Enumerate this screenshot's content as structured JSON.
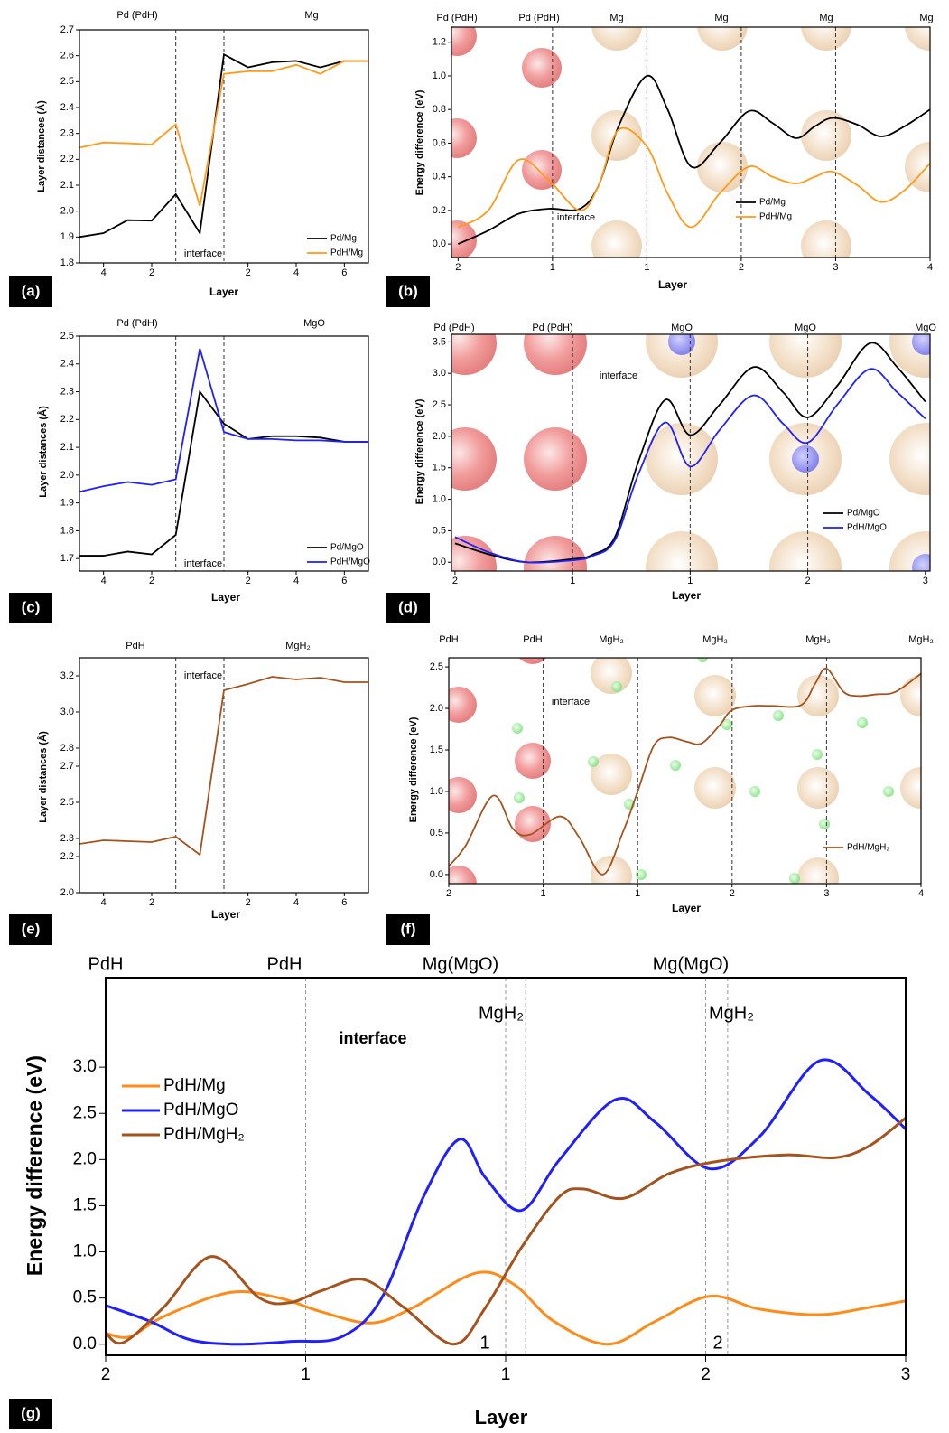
{
  "chart_data": [
    {
      "type": "line",
      "panel_label": "(a)",
      "top_labels": [
        "Pd (PdH)",
        "Mg"
      ],
      "annotations": [
        "interface"
      ],
      "x_label": "Layer",
      "y_label": "Layer distances (Å)",
      "categories": [
        null,
        "4",
        null,
        "2",
        null,
        null,
        null,
        "2",
        null,
        "4",
        null,
        "6",
        null
      ],
      "series": [
        {
          "name": "Pd/Mg",
          "color": "#000000",
          "values": [
            1.9,
            1.915,
            1.965,
            1.963,
            2.065,
            1.915,
            2.605,
            2.555,
            2.575,
            2.58,
            2.555,
            2.58,
            2.58
          ]
        },
        {
          "name": "PdH/Mg",
          "color": "#ff9a1a",
          "values": [
            2.245,
            2.265,
            2.262,
            2.257,
            2.335,
            2.02,
            2.53,
            2.54,
            2.54,
            2.565,
            2.53,
            2.58,
            2.58
          ]
        }
      ],
      "ylim": [
        1.8,
        2.7
      ],
      "yticks": [
        1.8,
        1.9,
        {
          "value": 2,
          "label": "2.0"
        },
        2.1,
        2.2,
        2.3,
        2.4,
        2.5,
        2.6,
        2.7
      ],
      "legend": "lower right",
      "smooth": false
    },
    {
      "type": "line",
      "panel_label": "(b)",
      "top_labels": [
        "Pd (PdH)",
        "Pd (PdH)",
        "Mg",
        "Mg",
        "Mg",
        "Mg"
      ],
      "annotations": [
        "interface"
      ],
      "x_label": "Layer",
      "y_label": "Energy difference (eV)",
      "categories": [
        "2",
        "1",
        "1",
        "2",
        "3",
        "4"
      ],
      "xlim": [
        -0.07,
        5
      ],
      "series": [
        {
          "name": "Pd/Mg",
          "color": "#000000",
          "x": [
            0,
            0.32,
            0.64,
            0.96,
            1.29,
            1.49,
            1.7,
            2,
            2.22,
            2.47,
            2.77,
            3.08,
            3.33,
            3.58,
            3.78,
            3.97,
            4.23,
            4.48,
            4.73,
            5
          ],
          "values": [
            0.0,
            0.08,
            0.18,
            0.21,
            0.21,
            0.35,
            0.7,
            1.0,
            0.8,
            0.46,
            0.6,
            0.79,
            0.72,
            0.63,
            0.7,
            0.75,
            0.71,
            0.64,
            0.7,
            0.8
          ]
        },
        {
          "name": "PdH/Mg",
          "color": "#ff9a1a",
          "x": [
            0,
            0.32,
            0.64,
            0.96,
            1.29,
            1.49,
            1.7,
            2,
            2.22,
            2.47,
            2.77,
            3.08,
            3.33,
            3.58,
            3.78,
            3.97,
            4.23,
            4.48,
            4.73,
            5
          ],
          "values": [
            0.1,
            0.2,
            0.5,
            0.38,
            0.2,
            0.35,
            0.68,
            0.58,
            0.3,
            0.1,
            0.3,
            0.46,
            0.4,
            0.36,
            0.4,
            0.43,
            0.35,
            0.25,
            0.32,
            0.48
          ]
        }
      ],
      "ylim": [
        -0.08,
        1.29
      ],
      "yticks": [
        {
          "value": 0,
          "label": "0.0"
        },
        0.2,
        0.4,
        0.6,
        0.8,
        {
          "value": 1,
          "label": "1.0"
        },
        1.2
      ],
      "legend": "lower right",
      "smooth": true
    },
    {
      "type": "line",
      "panel_label": "(c)",
      "top_labels": [
        "Pd (PdH)",
        "MgO"
      ],
      "annotations": [
        "interface"
      ],
      "x_label": "Layer",
      "y_label": "Layer distances (Å)",
      "categories": [
        null,
        "4",
        null,
        "2",
        null,
        null,
        null,
        "2",
        null,
        "4",
        null,
        "6",
        null
      ],
      "series": [
        {
          "name": "Pd/MgO",
          "color": "#000000",
          "values": [
            1.71,
            1.71,
            1.725,
            1.715,
            1.785,
            2.3,
            2.185,
            2.13,
            2.14,
            2.14,
            2.135,
            2.12,
            2.12
          ]
        },
        {
          "name": "PdH/MgO",
          "color": "#1f1fff",
          "values": [
            1.94,
            1.96,
            1.975,
            1.965,
            1.985,
            2.455,
            2.155,
            2.13,
            2.13,
            2.125,
            2.125,
            2.12,
            2.12
          ]
        }
      ],
      "ylim": [
        1.655,
        2.5
      ],
      "yticks": [
        1.7,
        1.8,
        1.9,
        {
          "value": 2,
          "label": "2.0"
        },
        2.1,
        2.2,
        2.3,
        2.4,
        2.5
      ],
      "legend": "lower right",
      "smooth": false
    },
    {
      "type": "line",
      "panel_label": "(d)",
      "top_labels": [
        "Pd (PdH)",
        "Pd (PdH)",
        "MgO",
        "MgO",
        "MgO"
      ],
      "annotations": [
        "interface"
      ],
      "x_label": "Layer",
      "y_label": "Energy difference (eV)",
      "categories": [
        "2",
        "1",
        "1",
        "2",
        "3"
      ],
      "xlim": [
        -0.03,
        4.04
      ],
      "series": [
        {
          "name": "Pd/MgO",
          "color": "#000000",
          "x": [
            0,
            0.3,
            0.61,
            1,
            1.17,
            1.36,
            1.56,
            1.79,
            2,
            2.25,
            2.54,
            2.79,
            3,
            3.25,
            3.53,
            3.76,
            4
          ],
          "values": [
            0.3,
            0.12,
            0.0,
            0.05,
            0.12,
            0.4,
            1.6,
            2.58,
            2.02,
            2.5,
            3.1,
            2.7,
            2.3,
            2.8,
            3.48,
            3.1,
            2.55
          ]
        },
        {
          "name": "PdH/MgO",
          "color": "#1f1fff",
          "x": [
            0,
            0.3,
            0.61,
            1,
            1.17,
            1.36,
            1.56,
            1.79,
            2,
            2.25,
            2.54,
            2.79,
            3,
            3.25,
            3.53,
            3.76,
            4
          ],
          "values": [
            0.4,
            0.15,
            0.0,
            0.03,
            0.1,
            0.35,
            1.4,
            2.22,
            1.52,
            2.1,
            2.65,
            2.2,
            1.9,
            2.5,
            3.07,
            2.7,
            2.28
          ]
        }
      ],
      "ylim": [
        -0.14,
        3.62
      ],
      "yticks": [
        {
          "value": 0,
          "label": "0.0"
        },
        0.5,
        {
          "value": 1,
          "label": "1.0"
        },
        1.5,
        {
          "value": 2,
          "label": "2.0"
        },
        2.5,
        {
          "value": 3,
          "label": "3.0"
        },
        3.5
      ],
      "legend": "lower right",
      "smooth": true
    },
    {
      "type": "line",
      "panel_label": "(e)",
      "top_labels": [
        "PdH",
        "MgH₂"
      ],
      "annotations": [
        "interface"
      ],
      "x_label": "Layer",
      "y_label": "Layer distances (Å)",
      "categories": [
        null,
        "4",
        null,
        "2",
        null,
        null,
        null,
        "2",
        null,
        "4",
        null,
        "6",
        null
      ],
      "series": [
        {
          "name": "PdH/MgH₂",
          "color": "#a5531e",
          "values": [
            2.27,
            2.29,
            2.285,
            2.28,
            2.31,
            2.21,
            3.12,
            3.155,
            3.195,
            3.18,
            3.19,
            3.165,
            3.165
          ]
        }
      ],
      "ylim": [
        2.0,
        3.3
      ],
      "yticks": [
        {
          "value": 2,
          "label": "2.0"
        },
        2.2,
        2.3,
        2.5,
        2.7,
        2.8,
        {
          "value": 3,
          "label": "3.0"
        },
        3.2
      ],
      "smooth": false
    },
    {
      "type": "line",
      "panel_label": "(f)",
      "top_labels": [
        "PdH",
        "PdH",
        "MgH₂",
        "MgH₂",
        "MgH₂",
        "MgH₂"
      ],
      "annotations": [
        "interface"
      ],
      "x_label": "Layer",
      "y_label": "Energy difference (eV)",
      "categories": [
        "2",
        "1",
        "1",
        "2",
        "3",
        "4"
      ],
      "xlim": [
        0,
        5
      ],
      "series": [
        {
          "name": "PdH/MgH₂",
          "color": "#a5531e",
          "x": [
            0,
            0.18,
            0.47,
            0.68,
            0.86,
            1.18,
            1.38,
            1.63,
            1.84,
            2,
            2.17,
            2.33,
            2.52,
            2.68,
            2.87,
            3,
            3.23,
            3.42,
            3.73,
            3.88,
            4,
            4.18,
            4.33,
            4.53,
            4.73,
            5
          ],
          "values": [
            0.1,
            0.35,
            0.95,
            0.55,
            0.48,
            0.7,
            0.45,
            0.0,
            0.5,
            1.0,
            1.55,
            1.65,
            1.6,
            1.58,
            1.8,
            1.98,
            2.03,
            2.03,
            2.04,
            2.3,
            2.48,
            2.2,
            2.15,
            2.17,
            2.2,
            2.42
          ]
        }
      ],
      "ylim": [
        -0.11,
        2.61
      ],
      "yticks": [
        {
          "value": 0,
          "label": "0.0"
        },
        0.5,
        {
          "value": 1,
          "label": "1.0"
        },
        1.5,
        {
          "value": 2,
          "label": "2.0"
        },
        2.5
      ],
      "legend": "lower right",
      "smooth": true
    },
    {
      "type": "line",
      "panel_label": "(g)",
      "top_labels": [
        "PdH",
        "PdH",
        "Mg(MgO)",
        "Mg(MgO)",
        "MgH₂",
        "MgH₂"
      ],
      "annotations": [
        "interface",
        "1",
        "2"
      ],
      "x_label": "Layer",
      "y_label": "Energy difference (eV)",
      "categories": [
        "2",
        "1",
        "1",
        "2",
        "3"
      ],
      "xlim": [
        0,
        4
      ],
      "series": [
        {
          "name": "PdH/Mg",
          "color": "#ff8c1a",
          "x": [
            0,
            0.12,
            0.29,
            0.62,
            0.87,
            1.08,
            1.33,
            1.54,
            1.85,
            2.04,
            2.24,
            2.51,
            2.75,
            3.02,
            3.27,
            3.57,
            3.82,
            4
          ],
          "values": [
            0.12,
            0.08,
            0.3,
            0.56,
            0.5,
            0.35,
            0.23,
            0.4,
            0.77,
            0.65,
            0.25,
            0.0,
            0.25,
            0.52,
            0.38,
            0.32,
            0.4,
            0.47
          ]
        },
        {
          "name": "PdH/MgO",
          "color": "#1f1fff",
          "x": [
            0,
            0.22,
            0.42,
            0.65,
            0.93,
            1.18,
            1.38,
            1.59,
            1.77,
            1.9,
            2.08,
            2.27,
            2.55,
            2.75,
            3.02,
            3.27,
            3.57,
            3.82,
            4
          ],
          "values": [
            0.42,
            0.25,
            0.05,
            0.0,
            0.03,
            0.08,
            0.5,
            1.6,
            2.22,
            1.8,
            1.45,
            2.0,
            2.65,
            2.4,
            1.9,
            2.25,
            3.07,
            2.7,
            2.33
          ]
        },
        {
          "name": "PdH/MgH₂",
          "color": "#a5531e",
          "x": [
            0,
            0.09,
            0.29,
            0.53,
            0.77,
            0.92,
            1.08,
            1.29,
            1.49,
            1.74,
            1.9,
            2.08,
            2.27,
            2.39,
            2.59,
            2.82,
            3.06,
            3.4,
            3.65,
            3.82,
            4
          ],
          "values": [
            0.12,
            0.02,
            0.4,
            0.95,
            0.5,
            0.45,
            0.58,
            0.7,
            0.4,
            0.0,
            0.4,
            1.05,
            1.6,
            1.68,
            1.58,
            1.85,
            1.98,
            2.05,
            2.02,
            2.15,
            2.45
          ]
        }
      ],
      "ylim": [
        -0.12,
        3.97
      ],
      "yticks": [
        {
          "value": 0,
          "label": "0.0"
        },
        0.5,
        {
          "value": 1,
          "label": "1.0"
        },
        1.5,
        {
          "value": 2,
          "label": "2.0"
        },
        2.5,
        {
          "value": 3,
          "label": "3.0"
        }
      ],
      "legend": "upper left",
      "smooth": true
    }
  ]
}
